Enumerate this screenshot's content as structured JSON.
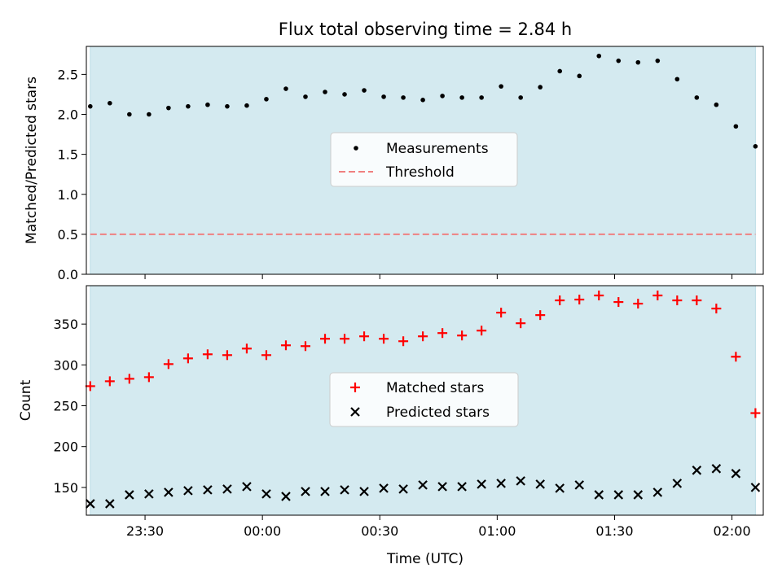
{
  "chart_data": [
    {
      "type": "scatter",
      "title": "Flux total observing time = 2.84 h",
      "xlabel": "",
      "ylabel": "Matched/Predicted stars",
      "xlim": [
        "23:15",
        "02:08"
      ],
      "ylim": [
        0,
        2.85
      ],
      "yticks": [
        "0.0",
        "0.5",
        "1.0",
        "1.5",
        "2.0",
        "2.5"
      ],
      "xticks_shown": false,
      "observing_window": [
        "23:16",
        "02:06"
      ],
      "threshold": 0.5,
      "x": [
        "23:16",
        "23:21",
        "23:26",
        "23:31",
        "23:36",
        "23:41",
        "23:46",
        "23:51",
        "23:56",
        "00:01",
        "00:06",
        "00:11",
        "00:16",
        "00:21",
        "00:26",
        "00:31",
        "00:36",
        "00:41",
        "00:46",
        "00:51",
        "00:56",
        "01:01",
        "01:06",
        "01:11",
        "01:16",
        "01:21",
        "01:26",
        "01:31",
        "01:36",
        "01:41",
        "01:46",
        "01:51",
        "01:56",
        "02:01",
        "02:06"
      ],
      "series": [
        {
          "name": "Measurements",
          "marker": "dot",
          "color": "#000000",
          "values": [
            2.1,
            2.14,
            2.0,
            2.0,
            2.08,
            2.1,
            2.12,
            2.1,
            2.11,
            2.19,
            2.32,
            2.22,
            2.28,
            2.25,
            2.3,
            2.22,
            2.21,
            2.18,
            2.23,
            2.21,
            2.21,
            2.35,
            2.21,
            2.34,
            2.54,
            2.48,
            2.73,
            2.67,
            2.65,
            2.67,
            2.44,
            2.21,
            2.12,
            1.85,
            1.6
          ]
        },
        {
          "name": "Threshold",
          "style": "dashed",
          "color": "#f08080",
          "values": [
            0.5
          ]
        }
      ],
      "legend": "center",
      "grid": false
    },
    {
      "type": "scatter",
      "title": "",
      "xlabel": "Time (UTC)",
      "ylabel": "Count",
      "xlim": [
        "23:15",
        "02:08"
      ],
      "ylim": [
        116,
        397
      ],
      "yticks": [
        "150",
        "200",
        "250",
        "300",
        "350"
      ],
      "xticks": [
        "23:30",
        "00:00",
        "00:30",
        "01:00",
        "01:30",
        "02:00"
      ],
      "observing_window": [
        "23:16",
        "02:06"
      ],
      "x": [
        "23:16",
        "23:21",
        "23:26",
        "23:31",
        "23:36",
        "23:41",
        "23:46",
        "23:51",
        "23:56",
        "00:01",
        "00:06",
        "00:11",
        "00:16",
        "00:21",
        "00:26",
        "00:31",
        "00:36",
        "00:41",
        "00:46",
        "00:51",
        "00:56",
        "01:01",
        "01:06",
        "01:11",
        "01:16",
        "01:21",
        "01:26",
        "01:31",
        "01:36",
        "01:41",
        "01:46",
        "01:51",
        "01:56",
        "02:01",
        "02:06"
      ],
      "series": [
        {
          "name": "Matched stars",
          "marker": "plus",
          "color": "#ff0000",
          "values": [
            274,
            280,
            283,
            285,
            301,
            308,
            313,
            312,
            320,
            312,
            324,
            323,
            332,
            332,
            335,
            332,
            329,
            335,
            339,
            336,
            342,
            364,
            351,
            361,
            379,
            380,
            385,
            377,
            375,
            385,
            379,
            379,
            369,
            310,
            241
          ]
        },
        {
          "name": "Predicted stars",
          "marker": "x",
          "color": "#000000",
          "values": [
            130,
            130,
            141,
            142,
            144,
            146,
            147,
            148,
            151,
            142,
            139,
            145,
            145,
            147,
            145,
            149,
            148,
            153,
            151,
            151,
            154,
            155,
            158,
            154,
            149,
            153,
            141,
            141,
            141,
            144,
            155,
            171,
            173,
            167,
            150
          ]
        }
      ],
      "legend": "center",
      "grid": false
    }
  ],
  "colors": {
    "observing_span": "#d4eaf0",
    "threshold": "#f08080",
    "matched": "#ff0000",
    "predicted": "#000000",
    "measurement": "#000000"
  }
}
